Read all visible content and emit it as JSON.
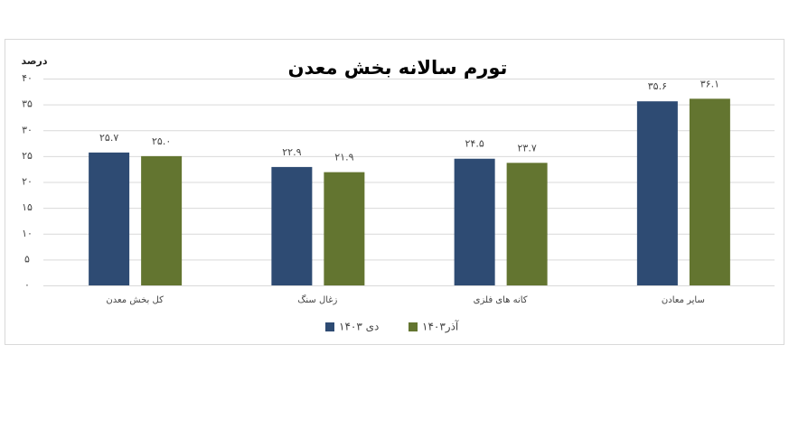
{
  "chart_data": {
    "type": "bar",
    "title": "تورم سالانه بخش معدن",
    "y_label": "درصد",
    "categories": [
      "کل بخش معدن",
      "زغال سنگ",
      "کانه های فلزی",
      "سایر معادن"
    ],
    "series": [
      {
        "name": "دی ۱۴۰۳",
        "color": "#2e4b73",
        "values": [
          25.7,
          22.9,
          24.5,
          35.6
        ],
        "value_labels": [
          "۲۵.۷",
          "۲۲.۹",
          "۲۴.۵",
          "۳۵.۶"
        ]
      },
      {
        "name": "آذر۱۴۰۳",
        "color": "#637530",
        "values": [
          25.0,
          21.9,
          23.7,
          36.1
        ],
        "value_labels": [
          "۲۵.۰",
          "۲۱.۹",
          "۲۳.۷",
          "۳۶.۱"
        ]
      }
    ],
    "ylim": [
      0,
      40
    ],
    "yticks": [
      {
        "value": 0,
        "label": "۰"
      },
      {
        "value": 5,
        "label": "۵"
      },
      {
        "value": 10,
        "label": "۱۰"
      },
      {
        "value": 15,
        "label": "۱۵"
      },
      {
        "value": 20,
        "label": "۲۰"
      },
      {
        "value": 25,
        "label": "۲۵"
      },
      {
        "value": 30,
        "label": "۳۰"
      },
      {
        "value": 35,
        "label": "۳۵"
      },
      {
        "value": 40,
        "label": "۴۰"
      }
    ],
    "grid": true
  }
}
